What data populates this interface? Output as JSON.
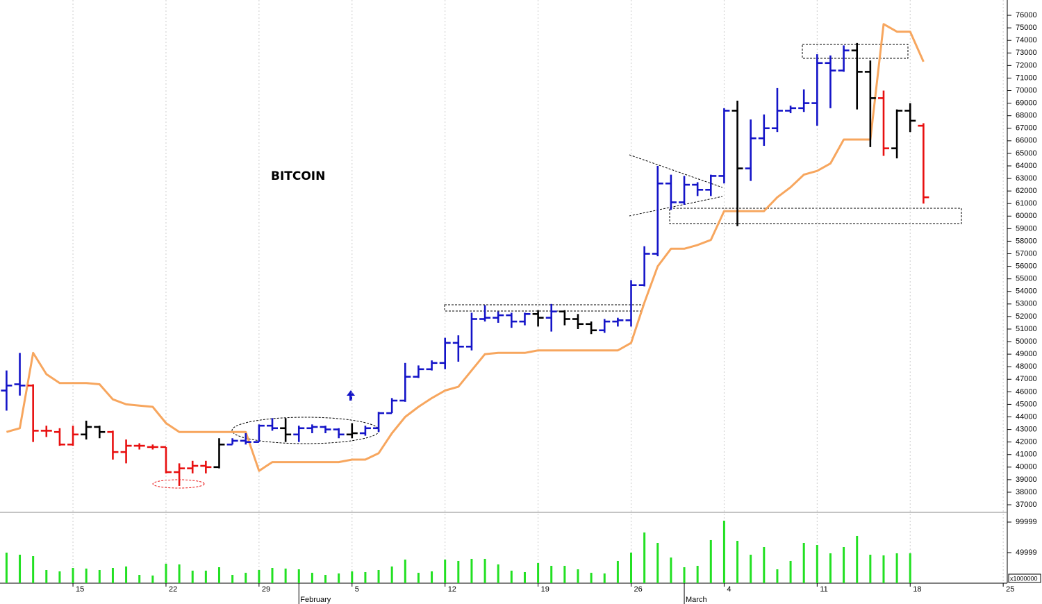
{
  "chart_data": {
    "type": "ohlc",
    "title": "BITCOIN",
    "categories": [
      null,
      null,
      null,
      null,
      null,
      "15",
      null,
      null,
      null,
      null,
      null,
      null,
      "22",
      null,
      null,
      null,
      null,
      null,
      null,
      "29",
      null,
      null,
      null,
      null,
      null,
      null,
      "5",
      null,
      null,
      null,
      null,
      null,
      null,
      "12",
      null,
      null,
      null,
      null,
      null,
      null,
      "19",
      null,
      null,
      null,
      null,
      null,
      null,
      "26",
      null,
      null,
      null,
      null,
      null,
      null,
      "4",
      null,
      null,
      null,
      null,
      null,
      null,
      "11",
      null,
      null,
      null,
      null,
      null,
      null,
      "18",
      null,
      null,
      null,
      null,
      null,
      null,
      "25"
    ],
    "month_labels": [
      null,
      null,
      null,
      null,
      null,
      null,
      null,
      null,
      null,
      null,
      null,
      null,
      null,
      null,
      null,
      null,
      null,
      null,
      null,
      null,
      null,
      null,
      "February",
      null,
      null,
      null,
      null,
      null,
      null,
      null,
      null,
      null,
      null,
      null,
      null,
      null,
      null,
      null,
      null,
      null,
      null,
      null,
      null,
      null,
      null,
      null,
      null,
      null,
      null,
      null,
      null,
      "March",
      null,
      null,
      null,
      null,
      null,
      null,
      null,
      null,
      null,
      null,
      null,
      null,
      null,
      null,
      null,
      null,
      null,
      null,
      null,
      null,
      null,
      null,
      null,
      null
    ],
    "open": [
      46100,
      46600,
      46500,
      42900,
      42800,
      41800,
      42600,
      43200,
      42800,
      41200,
      41700,
      41600,
      41600,
      39600,
      39900,
      40100,
      40000,
      41800,
      42100,
      42000,
      43300,
      43100,
      42600,
      43100,
      43200,
      43000,
      42600,
      42700,
      43100,
      44300,
      45300,
      47200,
      47800,
      48300,
      49900,
      49600,
      51800,
      51900,
      52100,
      51600,
      52200,
      51900,
      52400,
      51800,
      51400,
      50900,
      51600,
      51700,
      54500,
      57000,
      62600,
      61100,
      62500,
      62100,
      63200,
      68400,
      63800,
      66200,
      67000,
      68400,
      68600,
      69000,
      72200,
      71600,
      73200,
      71500,
      69400,
      65400,
      68400,
      67200,
      null,
      null,
      null,
      null,
      null,
      null
    ],
    "high": [
      47700,
      49100,
      46600,
      43300,
      43100,
      43300,
      43700,
      43300,
      42900,
      42200,
      41900,
      41800,
      41600,
      40300,
      40500,
      40500,
      42300,
      42300,
      42700,
      43400,
      43900,
      43900,
      43300,
      43400,
      43300,
      43100,
      43500,
      43300,
      44400,
      45500,
      48300,
      48100,
      48500,
      50300,
      50500,
      52300,
      52900,
      52400,
      52300,
      52300,
      52500,
      53000,
      52500,
      52200,
      51600,
      51800,
      51900,
      54900,
      57600,
      64000,
      63300,
      63200,
      62700,
      63300,
      68600,
      69200,
      67700,
      68100,
      70200,
      68800,
      70100,
      72900,
      72800,
      73600,
      73800,
      72400,
      70000,
      68500,
      69000,
      67400,
      null,
      null,
      null,
      null,
      null,
      null
    ],
    "low": [
      44500,
      45700,
      42000,
      42400,
      41700,
      41700,
      42200,
      42300,
      40600,
      40300,
      41400,
      41400,
      39500,
      38500,
      39500,
      39500,
      39900,
      41800,
      41800,
      42000,
      42900,
      42000,
      42000,
      42700,
      42700,
      42300,
      42300,
      42500,
      42800,
      44300,
      45200,
      47100,
      47700,
      47800,
      48400,
      49300,
      51600,
      51500,
      51100,
      51300,
      51200,
      50800,
      51300,
      51000,
      50600,
      50700,
      51200,
      51200,
      54400,
      56800,
      60500,
      60900,
      61600,
      61600,
      62600,
      59200,
      62800,
      65600,
      66700,
      68200,
      68300,
      67200,
      68600,
      71500,
      68500,
      65500,
      64800,
      64600,
      66700,
      61000,
      null,
      null,
      null,
      null,
      null,
      null
    ],
    "close": [
      46500,
      46500,
      42900,
      42900,
      41800,
      42600,
      43200,
      42800,
      41200,
      41700,
      41700,
      41600,
      39600,
      39900,
      40100,
      40000,
      41800,
      42100,
      42000,
      43300,
      43100,
      42600,
      43100,
      43200,
      43000,
      42600,
      42700,
      43100,
      44300,
      45300,
      47200,
      47800,
      48300,
      49900,
      49600,
      51800,
      51900,
      52100,
      51600,
      52200,
      51900,
      52400,
      51800,
      51400,
      50900,
      51600,
      51700,
      54500,
      57000,
      62600,
      61100,
      62500,
      62100,
      63200,
      68400,
      63800,
      66200,
      67000,
      68400,
      68600,
      69000,
      72200,
      71600,
      73200,
      71500,
      69400,
      65400,
      68400,
      67600,
      61500,
      null,
      null,
      null,
      null,
      null,
      null
    ],
    "bar_colors": [
      "#1414c8",
      "#1414c8",
      "#e81010",
      "#e81010",
      "#e81010",
      "#e81010",
      "#000000",
      "#000000",
      "#e81010",
      "#e81010",
      "#e81010",
      "#e81010",
      "#e81010",
      "#e81010",
      "#e81010",
      "#e81010",
      "#000000",
      "#1414c8",
      "#1414c8",
      "#1414c8",
      "#1414c8",
      "#000000",
      "#1414c8",
      "#1414c8",
      "#1414c8",
      "#1414c8",
      "#000000",
      "#1414c8",
      "#1414c8",
      "#1414c8",
      "#1414c8",
      "#1414c8",
      "#1414c8",
      "#1414c8",
      "#1414c8",
      "#1414c8",
      "#1414c8",
      "#1414c8",
      "#1414c8",
      "#1414c8",
      "#000000",
      "#1414c8",
      "#000000",
      "#000000",
      "#000000",
      "#1414c8",
      "#1414c8",
      "#1414c8",
      "#1414c8",
      "#1414c8",
      "#1414c8",
      "#1414c8",
      "#1414c8",
      "#1414c8",
      "#1414c8",
      "#000000",
      "#1414c8",
      "#1414c8",
      "#1414c8",
      "#1414c8",
      "#1414c8",
      "#1414c8",
      "#1414c8",
      "#1414c8",
      "#000000",
      "#000000",
      "#e81010",
      "#000000",
      "#000000",
      "#e81010",
      null,
      null,
      null,
      null,
      null,
      null
    ],
    "trailing_line": {
      "color": "#f7a65e",
      "values": [
        42800,
        43100,
        49100,
        47400,
        46700,
        46700,
        46700,
        46600,
        45400,
        45000,
        44900,
        44800,
        43500,
        42800,
        42800,
        42800,
        42800,
        42800,
        42800,
        39700,
        40400,
        40400,
        40400,
        40400,
        40400,
        40400,
        40600,
        40600,
        41100,
        42700,
        44000,
        44800,
        45500,
        46100,
        46400,
        47700,
        49000,
        49100,
        49100,
        49100,
        49300,
        49300,
        49300,
        49300,
        49300,
        49300,
        49300,
        49900,
        53100,
        56000,
        57400,
        57400,
        57700,
        58100,
        60400,
        60400,
        60400,
        60400,
        61500,
        62300,
        63300,
        63600,
        64200,
        66100,
        66100,
        66100,
        75300,
        74700,
        74700,
        72300,
        null,
        null,
        null,
        null,
        null,
        null
      ]
    },
    "ylim": [
      36560,
      77220
    ],
    "yticks": [
      37000,
      38000,
      39000,
      40000,
      41000,
      42000,
      43000,
      44000,
      45000,
      46000,
      47000,
      48000,
      49000,
      50000,
      51000,
      52000,
      53000,
      54000,
      55000,
      56000,
      57000,
      58000,
      59000,
      60000,
      61000,
      62000,
      63000,
      64000,
      65000,
      66000,
      67000,
      68000,
      69000,
      70000,
      71000,
      72000,
      73000,
      74000,
      75000,
      76000
    ],
    "volume": {
      "color": "#22e022",
      "unit_label": "x1000000",
      "values": [
        50000,
        46600,
        44300,
        21600,
        19300,
        25000,
        23900,
        21600,
        25000,
        27300,
        13600,
        12500,
        31800,
        30700,
        20500,
        20500,
        26100,
        13600,
        17000,
        21600,
        25000,
        23900,
        22700,
        17000,
        13600,
        15900,
        19300,
        18200,
        21600,
        27300,
        38600,
        17000,
        19300,
        38600,
        36400,
        39800,
        39800,
        30700,
        20500,
        18200,
        33000,
        28400,
        28400,
        22700,
        17000,
        15900,
        36400,
        50000,
        83000,
        65900,
        42000,
        26100,
        28400,
        70500,
        102300,
        69300,
        46600,
        59100,
        22700,
        36400,
        65900,
        62500,
        48900,
        59100,
        77300,
        46600,
        45500,
        48900,
        48900,
        null,
        null,
        null,
        null,
        null,
        null,
        null
      ],
      "ylim": [
        0,
        111360
      ],
      "yticks": [
        49999,
        99999
      ]
    }
  }
}
